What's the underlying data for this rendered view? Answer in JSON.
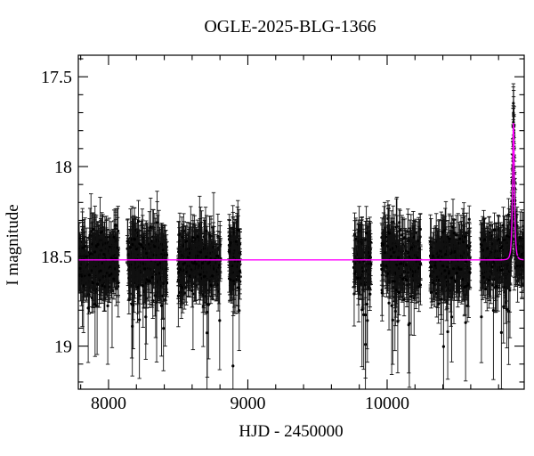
{
  "title": "OGLE-2025-BLG-1366",
  "axes": {
    "x": {
      "label": "HJD - 2450000",
      "min": 7783,
      "max": 10984,
      "major_ticks": [
        {
          "value": 8000,
          "label": "8000"
        },
        {
          "value": 9000,
          "label": "9000"
        },
        {
          "value": 10000,
          "label": "10000"
        }
      ],
      "minor_step": 200
    },
    "y": {
      "label": "I magnitude",
      "min": 17.38,
      "max": 19.24,
      "inverted": true,
      "major_ticks": [
        {
          "value": 17.5,
          "label": "17.5"
        },
        {
          "value": 18,
          "label": "18"
        },
        {
          "value": 18.5,
          "label": "18.5"
        },
        {
          "value": 19,
          "label": "19"
        }
      ],
      "minor_step": 0.1
    }
  },
  "chart_data": {
    "type": "scatter",
    "title": "OGLE-2025-BLG-1366",
    "xlabel": "HJD - 2450000",
    "ylabel": "I magnitude",
    "xlim": [
      7783,
      10984
    ],
    "ylim": [
      19.24,
      17.38
    ],
    "grid": false,
    "legend": false,
    "baseline_mag": 18.52,
    "scatter_sigma_mag": 0.085,
    "point_color": "#000000",
    "errorbar_color": "#111111",
    "seed": 1366,
    "seasons": [
      {
        "t_start": 7785,
        "t_end": 8070,
        "n_points": 290
      },
      {
        "t_start": 8135,
        "t_end": 8420,
        "n_points": 300
      },
      {
        "t_start": 8500,
        "t_end": 8805,
        "n_points": 300
      },
      {
        "t_start": 8865,
        "t_end": 8945,
        "n_points": 95
      },
      {
        "t_start": 9760,
        "t_end": 9885,
        "n_points": 115
      },
      {
        "t_start": 9955,
        "t_end": 10240,
        "n_points": 285
      },
      {
        "t_start": 10310,
        "t_end": 10595,
        "n_points": 285
      },
      {
        "t_start": 10670,
        "t_end": 10984,
        "n_points": 300
      }
    ],
    "event_points": {
      "t_center": 10907,
      "half_window_days": 27,
      "n_points": 44
    },
    "model": {
      "type": "paczynski_microlensing",
      "color": "#ff00ff",
      "baseline_mag": 18.52,
      "t0": 10907,
      "tE_days": 10.5,
      "u0": 0.55,
      "peak_mag": 17.76
    }
  }
}
